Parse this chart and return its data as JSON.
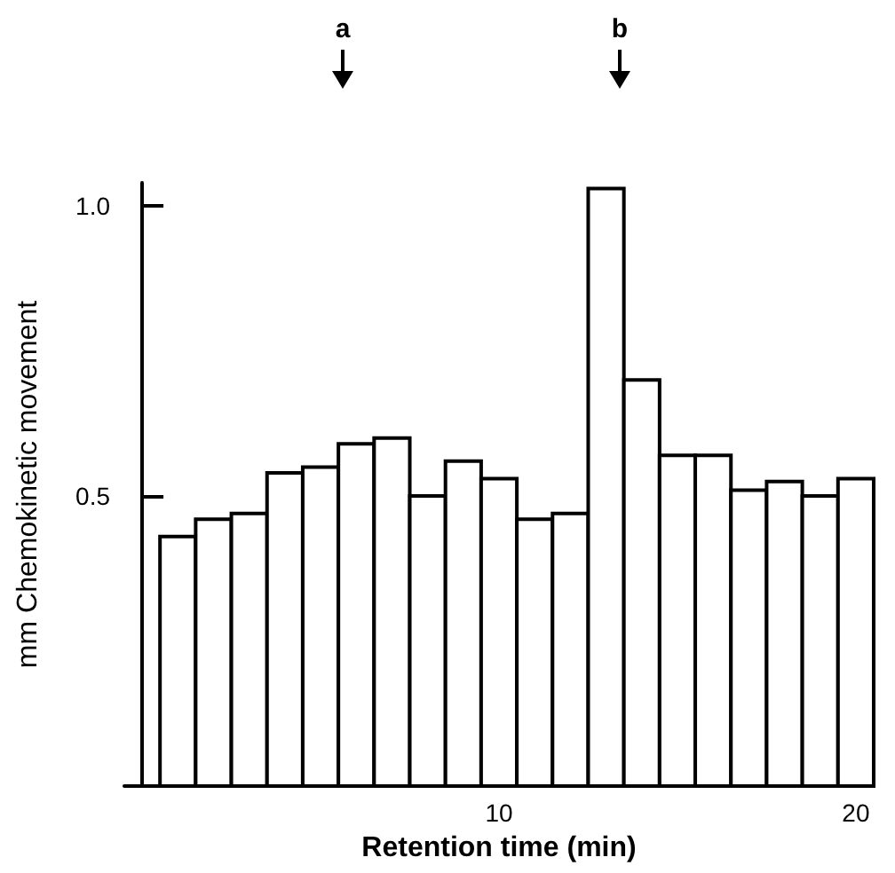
{
  "chart_data": {
    "type": "histogram",
    "xlabel": "Retention time (min)",
    "ylabel": "mm Chemokinetic movement",
    "bins": [
      0.5,
      1.5,
      2.5,
      3.5,
      4.5,
      5.5,
      6.5,
      7.5,
      8.5,
      9.5,
      10.5,
      11.5,
      12.5,
      13.5,
      14.5,
      15.5,
      16.5,
      17.5,
      18.5,
      19.5,
      20.5
    ],
    "values": [
      0.43,
      0.46,
      0.47,
      0.54,
      0.55,
      0.59,
      0.6,
      0.5,
      0.56,
      0.53,
      0.46,
      0.47,
      1.03,
      0.7,
      0.57,
      0.57,
      0.51,
      0.525,
      0.5,
      0.53
    ],
    "color": "#ffffff",
    "xlim": [
      -0.5,
      20.5
    ],
    "xticks": [
      10,
      20
    ],
    "ylim": [
      0,
      1.04
    ],
    "yticks": [
      {
        "value": 0.5,
        "label": "0.5"
      },
      {
        "value": 1,
        "label": "1.0"
      }
    ],
    "annotations": [
      "a",
      "b"
    ]
  }
}
